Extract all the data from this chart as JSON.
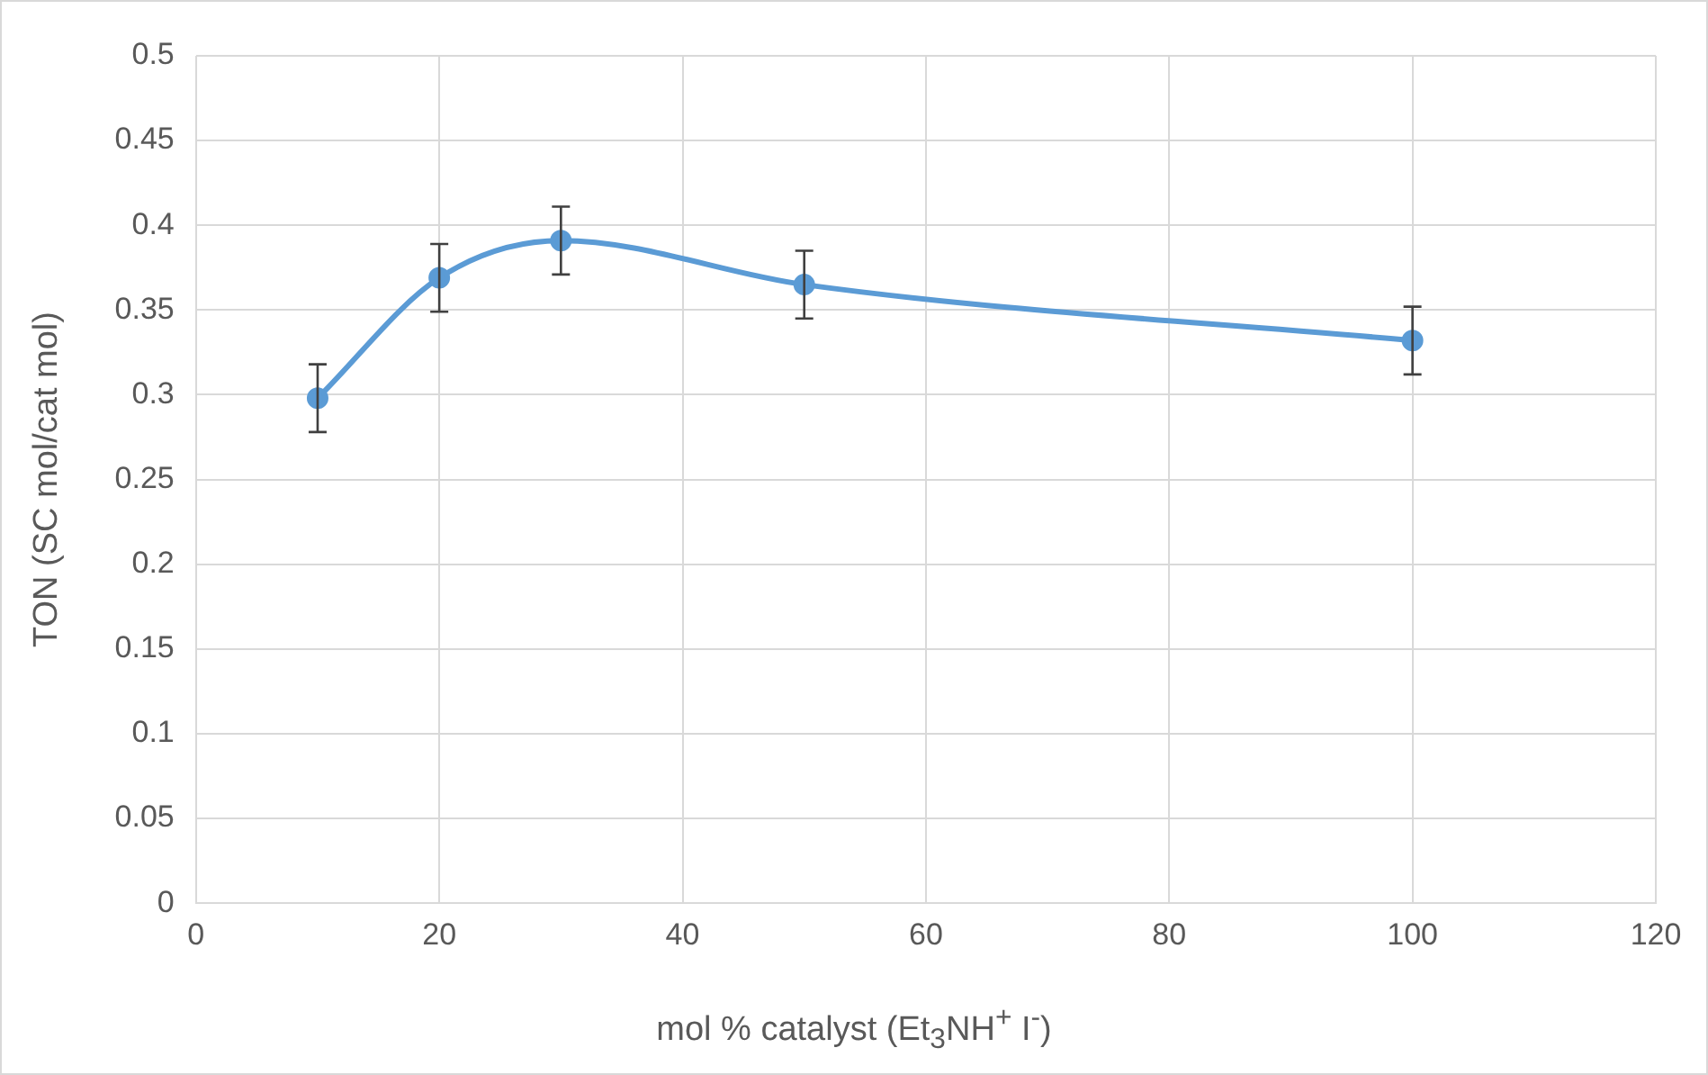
{
  "chart_data": {
    "type": "line",
    "xlabel": "mol % catalyst (Et$_{3}$NH$^{+}$ I$^{-}$)",
    "ylabel": "TON (SC mol/cat mol)",
    "x": [
      10,
      20,
      30,
      50,
      100
    ],
    "series": [
      {
        "color": "#5b9bd5",
        "values": [
          0.298,
          0.369,
          0.391,
          0.365,
          0.332
        ],
        "errors": [
          0.02,
          0.02,
          0.02,
          0.02,
          0.02
        ]
      }
    ],
    "xlim": [
      0,
      120
    ],
    "xticks": [
      0,
      20,
      40,
      60,
      80,
      100,
      120
    ],
    "ylim": [
      0,
      0.5
    ],
    "yticks": [
      0,
      0.05,
      0.1,
      0.15,
      0.2,
      0.25,
      0.3,
      0.35,
      0.4,
      0.45,
      0.5
    ],
    "grid": true,
    "legend": false,
    "marker": "circle",
    "line_style": "solid"
  }
}
